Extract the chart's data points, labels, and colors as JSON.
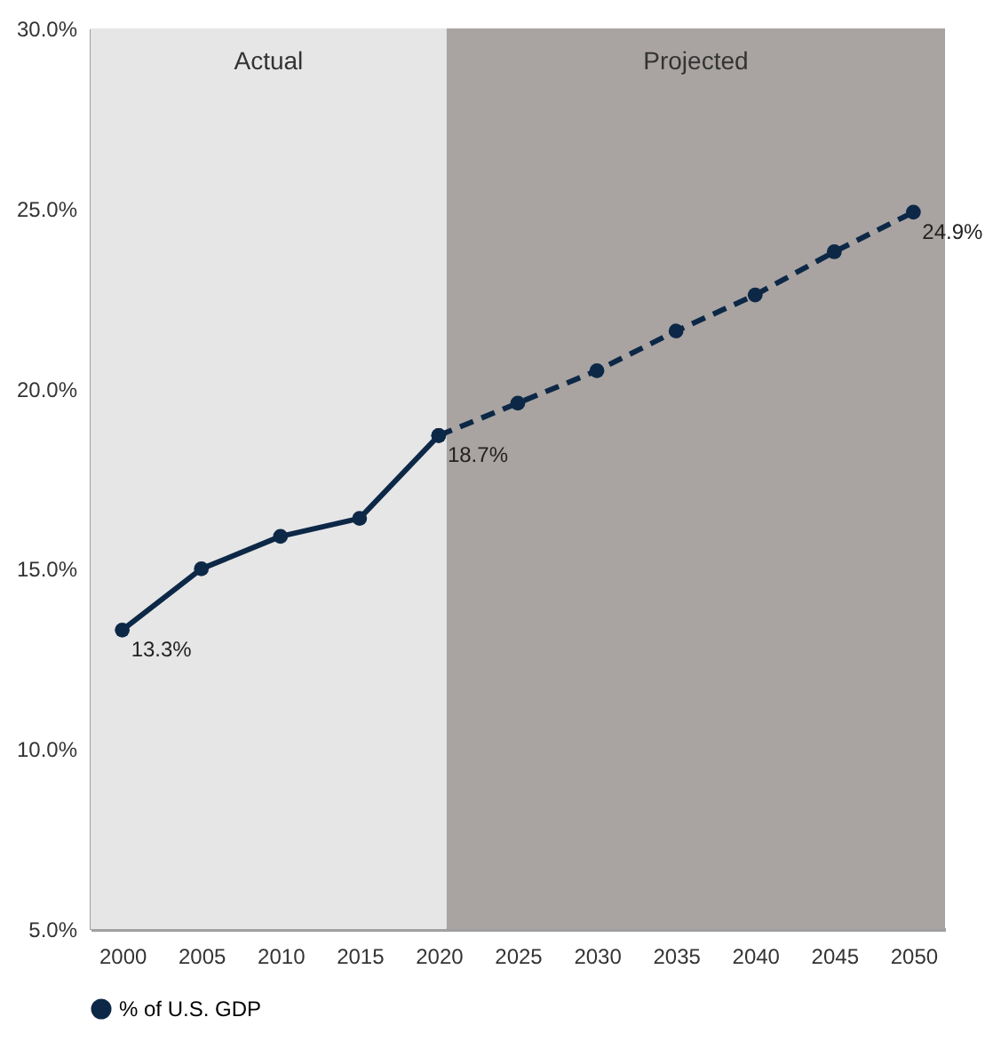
{
  "chart_data": {
    "type": "line",
    "x": [
      2000,
      2005,
      2010,
      2015,
      2020,
      2025,
      2030,
      2035,
      2040,
      2045,
      2050
    ],
    "series": [
      {
        "name": "% of U.S. GDP",
        "color": "#0d2847",
        "line_style": "solid",
        "values": [
          13.3,
          15.0,
          15.9,
          16.4,
          18.7,
          null,
          null,
          null,
          null,
          null,
          null
        ]
      },
      {
        "color": "#0d2847",
        "line_style": "dashed",
        "values": [
          null,
          null,
          null,
          null,
          18.7,
          19.6,
          20.5,
          21.6,
          22.6,
          23.8,
          24.9
        ]
      }
    ],
    "xlim": [
      1998,
      2052
    ],
    "xticks": [
      2000,
      2005,
      2010,
      2015,
      2020,
      2025,
      2030,
      2035,
      2040,
      2045,
      2050
    ],
    "ylim": [
      5,
      30
    ],
    "yticks": [
      {
        "value": 5,
        "label": "5.0%"
      },
      {
        "value": 10,
        "label": "10.0%"
      },
      {
        "value": 15,
        "label": "15.0%"
      },
      {
        "value": 20,
        "label": "20.0%"
      },
      {
        "value": 25,
        "label": "25.0%"
      },
      {
        "value": 30,
        "label": "30.0%"
      }
    ],
    "bands": [
      {
        "axis": "x",
        "from": 1998,
        "to": 2020.5,
        "label": "Actual",
        "color": "#e6e6e6"
      },
      {
        "axis": "x",
        "from": 2020.5,
        "to": 2052,
        "label": "Projected",
        "color": "#a9a4a1"
      }
    ],
    "annotations": [
      {
        "text": "13.3%",
        "x": 2000,
        "y": 13.3
      },
      {
        "text": "18.7%",
        "x": 2020,
        "y": 18.7
      },
      {
        "text": "24.9%",
        "x": 2050,
        "y": 24.9
      }
    ],
    "marker": "circle",
    "grid": false,
    "legend": "bottom"
  }
}
